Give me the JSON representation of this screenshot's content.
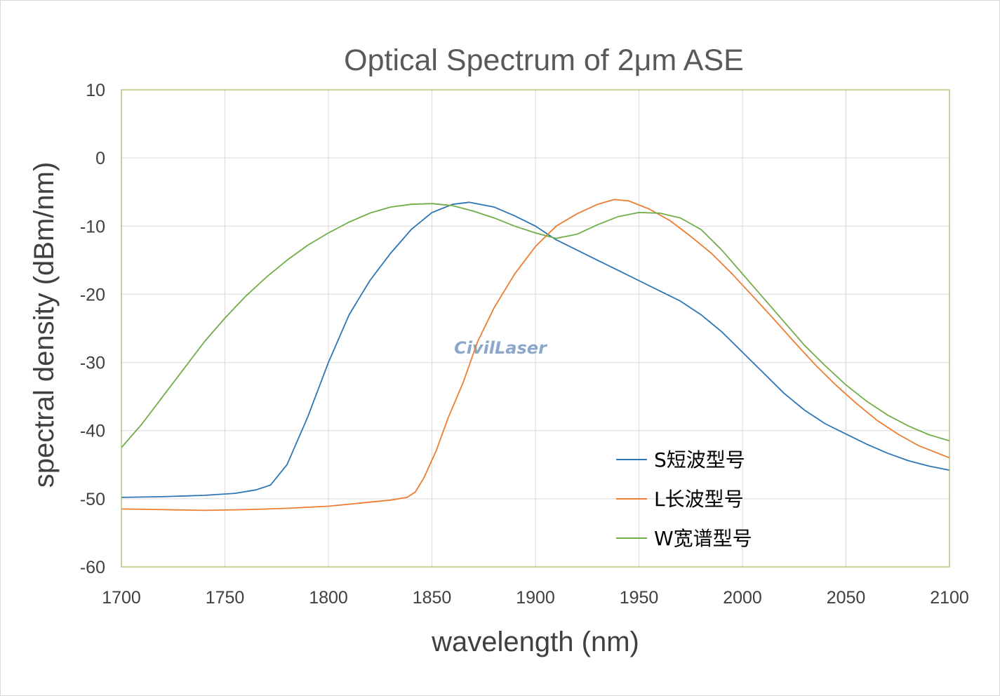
{
  "chart_data": {
    "type": "line",
    "title": "Optical Spectrum of 2μm ASE",
    "xlabel": "wavelength (nm)",
    "ylabel": "spectral density (dBm/nm)",
    "xlim": [
      1700,
      2100
    ],
    "ylim": [
      -60,
      10
    ],
    "xticks": [
      1700,
      1750,
      1800,
      1850,
      1900,
      1950,
      2000,
      2050,
      2100
    ],
    "yticks": [
      10,
      0,
      -10,
      -20,
      -30,
      -40,
      -50,
      -60
    ],
    "grid": true,
    "legend_position": "bottom-right",
    "watermark": "CivilLaser",
    "series": [
      {
        "name": "S短波型号",
        "color": "#2e75b6",
        "x": [
          1700,
          1720,
          1740,
          1755,
          1765,
          1772,
          1780,
          1790,
          1800,
          1810,
          1820,
          1830,
          1840,
          1850,
          1860,
          1868,
          1880,
          1890,
          1900,
          1910,
          1920,
          1930,
          1940,
          1950,
          1960,
          1970,
          1980,
          1990,
          2000,
          2010,
          2020,
          2030,
          2040,
          2050,
          2060,
          2070,
          2080,
          2090,
          2100
        ],
        "y": [
          -49.8,
          -49.7,
          -49.5,
          -49.2,
          -48.7,
          -48.0,
          -45.0,
          -38.0,
          -30.0,
          -23.0,
          -18.0,
          -14.0,
          -10.5,
          -8.0,
          -6.8,
          -6.5,
          -7.2,
          -8.5,
          -10.0,
          -12.0,
          -13.5,
          -15.0,
          -16.5,
          -18.0,
          -19.5,
          -21.0,
          -23.0,
          -25.5,
          -28.5,
          -31.5,
          -34.5,
          -37.0,
          -39.0,
          -40.5,
          -42.0,
          -43.3,
          -44.4,
          -45.2,
          -45.8
        ]
      },
      {
        "name": "L长波型号",
        "color": "#ed7d31",
        "x": [
          1700,
          1720,
          1740,
          1760,
          1780,
          1800,
          1810,
          1820,
          1830,
          1838,
          1842,
          1846,
          1852,
          1858,
          1865,
          1872,
          1880,
          1890,
          1900,
          1910,
          1920,
          1930,
          1938,
          1945,
          1955,
          1965,
          1975,
          1985,
          1995,
          2005,
          2015,
          2025,
          2035,
          2045,
          2055,
          2065,
          2075,
          2085,
          2100
        ],
        "y": [
          -51.5,
          -51.6,
          -51.7,
          -51.6,
          -51.4,
          -51.1,
          -50.8,
          -50.5,
          -50.2,
          -49.8,
          -49.0,
          -47.0,
          -43.0,
          -38.0,
          -33.0,
          -27.0,
          -22.0,
          -17.0,
          -13.0,
          -10.0,
          -8.2,
          -6.8,
          -6.1,
          -6.3,
          -7.5,
          -9.2,
          -11.5,
          -14.0,
          -17.0,
          -20.3,
          -23.6,
          -27.0,
          -30.3,
          -33.3,
          -36.0,
          -38.5,
          -40.5,
          -42.2,
          -44.0
        ]
      },
      {
        "name": "W宽谱型号",
        "color": "#70ad47",
        "x": [
          1700,
          1710,
          1720,
          1730,
          1740,
          1750,
          1760,
          1770,
          1780,
          1790,
          1800,
          1810,
          1820,
          1830,
          1840,
          1850,
          1860,
          1870,
          1880,
          1890,
          1900,
          1910,
          1920,
          1930,
          1940,
          1950,
          1960,
          1970,
          1980,
          1990,
          2000,
          2010,
          2020,
          2030,
          2040,
          2050,
          2060,
          2070,
          2080,
          2090,
          2100
        ],
        "y": [
          -42.5,
          -39.0,
          -35.0,
          -31.0,
          -27.0,
          -23.5,
          -20.3,
          -17.5,
          -15.0,
          -12.8,
          -11.0,
          -9.4,
          -8.1,
          -7.2,
          -6.8,
          -6.7,
          -7.0,
          -7.8,
          -8.8,
          -10.0,
          -11.0,
          -11.8,
          -11.2,
          -9.8,
          -8.6,
          -8.0,
          -8.1,
          -8.8,
          -10.5,
          -13.5,
          -17.0,
          -20.5,
          -24.0,
          -27.5,
          -30.5,
          -33.3,
          -35.7,
          -37.7,
          -39.3,
          -40.6,
          -41.5
        ]
      }
    ]
  }
}
